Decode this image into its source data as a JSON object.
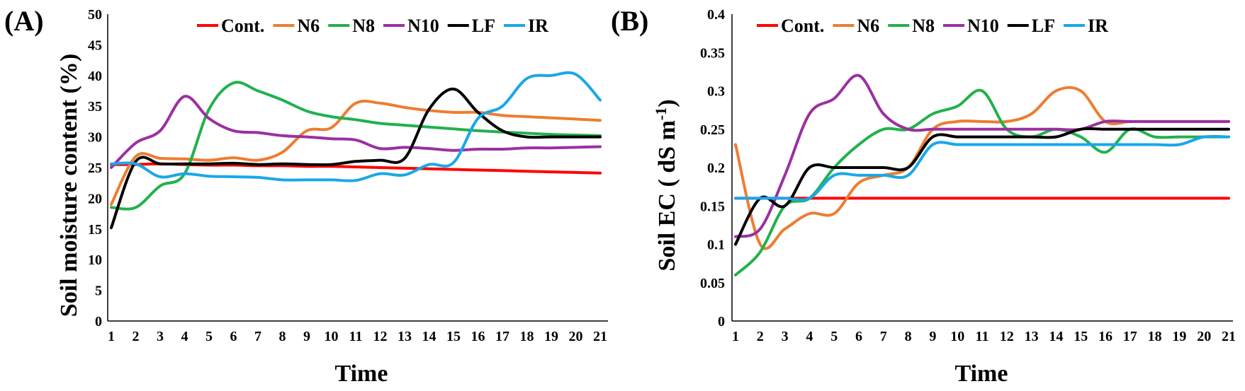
{
  "chart_data": [
    {
      "type": "line",
      "panel_label": "(A)",
      "xlabel": "Time",
      "ylabel": "Soil moisture content (%)",
      "ylim": [
        0,
        50
      ],
      "yticks": [
        "0",
        "5",
        "10",
        "15",
        "20",
        "25",
        "30",
        "35",
        "40",
        "45",
        "50"
      ],
      "x": [
        1,
        2,
        3,
        4,
        5,
        6,
        7,
        8,
        9,
        10,
        11,
        12,
        13,
        14,
        15,
        16,
        17,
        18,
        19,
        20,
        21
      ],
      "grid": false,
      "legend_placement": "top",
      "series": [
        {
          "name": "Cont.",
          "color": "#ff0000",
          "values": [
            25.5,
            25.5,
            25.6,
            25.5,
            25.4,
            25.4,
            25.3,
            25.3,
            25.2,
            25.2,
            25.1,
            25.0,
            24.9,
            24.8,
            24.7,
            24.6,
            24.5,
            24.4,
            24.3,
            24.2,
            24.1
          ]
        },
        {
          "name": "N6",
          "color": "#ed7d31",
          "values": [
            19,
            26.8,
            26.5,
            26.4,
            26.2,
            26.6,
            26.2,
            27.5,
            31,
            31.5,
            35.5,
            35.5,
            34.8,
            34.3,
            34,
            34,
            33.5,
            33.3,
            33.1,
            32.9,
            32.7
          ]
        },
        {
          "name": "N8",
          "color": "#22b14c",
          "values": [
            18.5,
            18.5,
            22,
            24,
            34.5,
            38.8,
            37.5,
            36,
            34.2,
            33.3,
            32.8,
            32.2,
            31.9,
            31.6,
            31.3,
            31,
            30.8,
            30.6,
            30.4,
            30.3,
            30.2
          ]
        },
        {
          "name": "N10",
          "color": "#9b30a0",
          "values": [
            25,
            29,
            31,
            36.6,
            33,
            31,
            30.7,
            30.2,
            30,
            29.7,
            29.5,
            28.1,
            28.3,
            28.1,
            27.8,
            28,
            28,
            28.2,
            28.2,
            28.3,
            28.4
          ]
        },
        {
          "name": "LF",
          "color": "#000000",
          "values": [
            15.2,
            26,
            25.6,
            25.6,
            25.6,
            25.7,
            25.5,
            25.6,
            25.5,
            25.5,
            26,
            26.2,
            26.5,
            34.5,
            37.8,
            34,
            31,
            30,
            30,
            30,
            30
          ]
        },
        {
          "name": "IR",
          "color": "#1aa7e8",
          "values": [
            25.6,
            25.6,
            23.5,
            24,
            23.6,
            23.5,
            23.4,
            23,
            23,
            23,
            22.9,
            24,
            23.8,
            25.5,
            25.8,
            33,
            35,
            39.5,
            40,
            40.2,
            36
          ]
        }
      ]
    },
    {
      "type": "line",
      "panel_label": "(B)",
      "xlabel": "Time",
      "ylabel_main": "Soil EC ( dS m",
      "ylabel_sup": "-1",
      "ylabel_close": ")",
      "ylim": [
        0,
        0.4
      ],
      "yticks": [
        "0",
        "0.05",
        "0.1",
        "0.15",
        "0.2",
        "0.25",
        "0.3",
        "0.35",
        "0.4"
      ],
      "x": [
        1,
        2,
        3,
        4,
        5,
        6,
        7,
        8,
        9,
        10,
        11,
        12,
        13,
        14,
        15,
        16,
        17,
        18,
        19,
        20,
        21
      ],
      "grid": false,
      "legend_placement": "top",
      "series": [
        {
          "name": "Cont.",
          "color": "#ff0000",
          "values": [
            0.16,
            0.16,
            0.16,
            0.16,
            0.16,
            0.16,
            0.16,
            0.16,
            0.16,
            0.16,
            0.16,
            0.16,
            0.16,
            0.16,
            0.16,
            0.16,
            0.16,
            0.16,
            0.16,
            0.16,
            0.16
          ]
        },
        {
          "name": "N6",
          "color": "#ed7d31",
          "values": [
            0.23,
            0.1,
            0.12,
            0.14,
            0.14,
            0.18,
            0.19,
            0.2,
            0.25,
            0.26,
            0.26,
            0.26,
            0.27,
            0.3,
            0.3,
            0.26,
            0.26,
            0.26,
            0.26,
            0.26,
            0.26
          ]
        },
        {
          "name": "N8",
          "color": "#22b14c",
          "values": [
            0.06,
            0.09,
            0.15,
            0.16,
            0.2,
            0.23,
            0.25,
            0.25,
            0.27,
            0.28,
            0.3,
            0.25,
            0.24,
            0.25,
            0.24,
            0.22,
            0.25,
            0.24,
            0.24,
            0.24,
            0.24
          ]
        },
        {
          "name": "N10",
          "color": "#9b30a0",
          "values": [
            0.11,
            0.12,
            0.19,
            0.27,
            0.29,
            0.32,
            0.27,
            0.25,
            0.25,
            0.25,
            0.25,
            0.25,
            0.25,
            0.25,
            0.25,
            0.26,
            0.26,
            0.26,
            0.26,
            0.26,
            0.26
          ]
        },
        {
          "name": "LF",
          "color": "#000000",
          "values": [
            0.1,
            0.16,
            0.15,
            0.2,
            0.2,
            0.2,
            0.2,
            0.2,
            0.24,
            0.24,
            0.24,
            0.24,
            0.24,
            0.24,
            0.25,
            0.25,
            0.25,
            0.25,
            0.25,
            0.25,
            0.25
          ]
        },
        {
          "name": "IR",
          "color": "#1aa7e8",
          "values": [
            0.16,
            0.16,
            0.16,
            0.16,
            0.19,
            0.19,
            0.19,
            0.19,
            0.23,
            0.23,
            0.23,
            0.23,
            0.23,
            0.23,
            0.23,
            0.23,
            0.23,
            0.23,
            0.23,
            0.24,
            0.24
          ]
        }
      ]
    }
  ]
}
